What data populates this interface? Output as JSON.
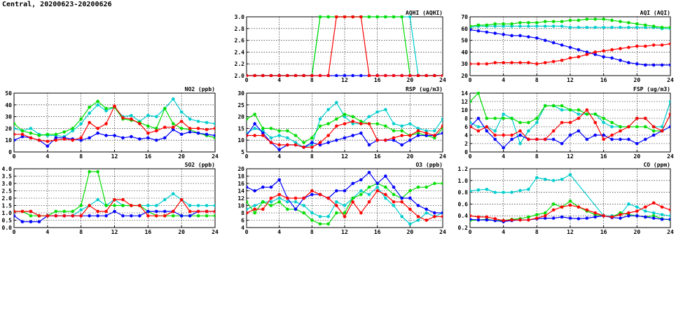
{
  "page": {
    "title": "Central, 20200623-20200626"
  },
  "colors": {
    "series": [
      "#00cdcd",
      "#00dd00",
      "#0000ff",
      "#ff0000"
    ]
  },
  "chart_data": [
    {
      "id": "aqhi",
      "type": "line",
      "title": "AQHI (AQHI)",
      "xlim": [
        0,
        24
      ],
      "ylim": [
        2.0,
        3.0
      ],
      "xticks": [
        "0",
        "4",
        "8",
        "12",
        "16",
        "20",
        "24"
      ],
      "yticks": [
        "2.0",
        "2.2",
        "2.4",
        "2.6",
        "2.8",
        "3.0"
      ],
      "grid": true,
      "series": [
        {
          "color": "cyan",
          "values": [
            2,
            2,
            2,
            2,
            2,
            2,
            2,
            2,
            2,
            3,
            3,
            3,
            3,
            3,
            3,
            3,
            3,
            3,
            3,
            3,
            3,
            2,
            2,
            2,
            2
          ]
        },
        {
          "color": "green",
          "values": [
            2,
            2,
            2,
            2,
            2,
            2,
            2,
            2,
            2,
            3,
            3,
            3,
            3,
            3,
            3,
            3,
            3,
            3,
            3,
            3,
            2,
            2,
            2,
            2,
            2
          ]
        },
        {
          "color": "blue",
          "values": [
            2,
            2,
            2,
            2,
            2,
            2,
            2,
            2,
            2,
            2,
            2,
            2,
            2,
            2,
            2,
            2,
            2,
            2,
            2,
            2,
            2,
            2,
            2,
            2,
            2
          ]
        },
        {
          "color": "red",
          "values": [
            2,
            2,
            2,
            2,
            2,
            2,
            2,
            2,
            2,
            2,
            2,
            3,
            3,
            3,
            3,
            2,
            2,
            2,
            2,
            2,
            2,
            2,
            2,
            2,
            2
          ]
        }
      ]
    },
    {
      "id": "aqi",
      "type": "line",
      "title": "AQI (AQI)",
      "xlim": [
        0,
        24
      ],
      "ylim": [
        20,
        70
      ],
      "xticks": [
        "0",
        "4",
        "8",
        "12",
        "16",
        "20",
        "24"
      ],
      "yticks": [
        "20",
        "30",
        "40",
        "50",
        "60",
        "70"
      ],
      "grid": true,
      "series": [
        {
          "color": "cyan",
          "values": [
            61,
            62,
            62,
            62,
            62,
            62,
            62,
            62,
            62,
            62,
            62,
            62,
            61,
            61,
            61,
            61,
            61,
            61,
            61,
            61,
            61,
            61,
            61,
            60,
            60
          ]
        },
        {
          "color": "green",
          "values": [
            62,
            63,
            63,
            64,
            64,
            64,
            65,
            65,
            65,
            66,
            66,
            66,
            67,
            67,
            68,
            68,
            68,
            67,
            66,
            65,
            64,
            63,
            62,
            61,
            61
          ]
        },
        {
          "color": "blue",
          "values": [
            59,
            58,
            57,
            56,
            55,
            54,
            54,
            53,
            52,
            50,
            48,
            46,
            44,
            42,
            40,
            38,
            36,
            35,
            33,
            31,
            30,
            29,
            29,
            29,
            29
          ]
        },
        {
          "color": "red",
          "values": [
            30,
            30,
            30,
            31,
            31,
            31,
            31,
            31,
            30,
            31,
            32,
            33,
            35,
            36,
            38,
            40,
            41,
            42,
            43,
            44,
            45,
            45,
            46,
            46,
            47
          ]
        }
      ]
    },
    {
      "id": "no2",
      "type": "line",
      "title": "NO2 (ppb)",
      "xlim": [
        0,
        24
      ],
      "ylim": [
        0,
        50
      ],
      "xticks": [
        "0",
        "4",
        "8",
        "12",
        "16",
        "20",
        "24"
      ],
      "yticks": [
        "0",
        "10",
        "20",
        "30",
        "40",
        "50"
      ],
      "grid": true,
      "series": [
        {
          "color": "cyan",
          "values": [
            20,
            18,
            20,
            15,
            14,
            14,
            13,
            18,
            24,
            33,
            40,
            35,
            38,
            30,
            31,
            26,
            31,
            30,
            37,
            45,
            34,
            28,
            26,
            25,
            24
          ]
        },
        {
          "color": "green",
          "values": [
            24,
            18,
            16,
            14,
            15,
            15,
            17,
            20,
            28,
            38,
            43,
            37,
            38,
            28,
            27,
            25,
            22,
            20,
            37,
            24,
            20,
            19,
            16,
            14,
            12
          ]
        },
        {
          "color": "blue",
          "values": [
            10,
            13,
            12,
            10,
            5,
            12,
            12,
            11,
            10,
            12,
            16,
            14,
            14,
            12,
            13,
            11,
            12,
            10,
            12,
            19,
            15,
            17,
            16,
            15,
            14
          ]
        },
        {
          "color": "red",
          "values": [
            15,
            15,
            12,
            10,
            9,
            10,
            11,
            10,
            12,
            25,
            20,
            24,
            39,
            29,
            28,
            24,
            16,
            18,
            21,
            21,
            26,
            20,
            20,
            19,
            20
          ]
        }
      ]
    },
    {
      "id": "rsp",
      "type": "line",
      "title": "RSP (ug/m3)",
      "xlim": [
        0,
        24
      ],
      "ylim": [
        5,
        30
      ],
      "xticks": [
        "0",
        "4",
        "8",
        "12",
        "16",
        "20",
        "24"
      ],
      "yticks": [
        "5",
        "10",
        "15",
        "20",
        "25",
        "30"
      ],
      "grid": true,
      "series": [
        {
          "color": "cyan",
          "values": [
            13,
            15,
            14,
            11,
            12,
            11,
            9,
            7,
            8,
            19,
            23,
            26,
            20,
            17,
            17,
            20,
            22,
            23,
            17,
            16,
            17,
            15,
            14,
            14,
            19
          ]
        },
        {
          "color": "green",
          "values": [
            19,
            21,
            15,
            15,
            14,
            14,
            12,
            9,
            11,
            16,
            17,
            19,
            21,
            20,
            18,
            17,
            17,
            16,
            14,
            14,
            12,
            13,
            12,
            11,
            15
          ]
        },
        {
          "color": "blue",
          "values": [
            12,
            17,
            13,
            9,
            6,
            8,
            8,
            7,
            9,
            8,
            9,
            10,
            11,
            12,
            13,
            8,
            10,
            10,
            10,
            8,
            10,
            12,
            12,
            12,
            13
          ]
        },
        {
          "color": "red",
          "values": [
            12,
            12,
            12,
            9,
            8,
            8,
            8,
            7,
            7,
            9,
            12,
            16,
            17,
            18,
            17,
            17,
            10,
            10,
            11,
            12,
            12,
            14,
            13,
            12,
            16
          ]
        }
      ]
    },
    {
      "id": "fsp",
      "type": "line",
      "title": "FSP (ug/m3)",
      "xlim": [
        0,
        24
      ],
      "ylim": [
        0,
        14
      ],
      "xticks": [
        "0",
        "4",
        "8",
        "12",
        "16",
        "20",
        "24"
      ],
      "yticks": [
        "0",
        "2",
        "4",
        "6",
        "8",
        "10",
        "12",
        "14"
      ],
      "grid": true,
      "series": [
        {
          "color": "cyan",
          "values": [
            7,
            6,
            6,
            5,
            9,
            8,
            2,
            5,
            7,
            11,
            11,
            10,
            10,
            9,
            9,
            9,
            7,
            6,
            6,
            6,
            8,
            8,
            6,
            6,
            12
          ]
        },
        {
          "color": "green",
          "values": [
            12,
            14,
            8,
            8,
            8,
            8,
            7,
            7,
            8,
            11,
            11,
            11,
            10,
            10,
            9,
            9,
            8,
            7,
            6,
            6,
            6,
            6,
            5,
            5,
            6
          ]
        },
        {
          "color": "blue",
          "values": [
            6,
            8,
            5,
            3,
            1,
            3,
            4,
            3,
            3,
            3,
            3,
            2,
            4,
            5,
            3,
            4,
            4,
            3,
            3,
            3,
            2,
            3,
            4,
            5,
            6
          ]
        },
        {
          "color": "red",
          "values": [
            6,
            5,
            6,
            4,
            4,
            4,
            5,
            3,
            3,
            3,
            5,
            7,
            7,
            8,
            10,
            7,
            3,
            4,
            5,
            6,
            8,
            8,
            6,
            5,
            9
          ]
        }
      ]
    },
    {
      "id": "so2",
      "type": "line",
      "title": "SO2 (ppb)",
      "xlim": [
        0,
        24
      ],
      "ylim": [
        0.0,
        4.0
      ],
      "xticks": [
        "0",
        "4",
        "8",
        "12",
        "16",
        "20",
        "24"
      ],
      "yticks": [
        "0.0",
        "0.5",
        "1.0",
        "1.5",
        "2.0",
        "2.5",
        "3.0",
        "3.5",
        "4.0"
      ],
      "grid": true,
      "series": [
        {
          "color": "cyan",
          "values": [
            1.1,
            1.1,
            1.1,
            0.8,
            0.8,
            0.8,
            0.8,
            0.8,
            1.2,
            1.5,
            1.9,
            1.5,
            1.9,
            1.5,
            1.5,
            1.5,
            1.5,
            1.5,
            1.9,
            2.3,
            1.9,
            1.5,
            1.5,
            1.5,
            1.5
          ]
        },
        {
          "color": "green",
          "values": [
            1.1,
            1.1,
            0.8,
            0.8,
            0.8,
            1.1,
            1.1,
            1.1,
            1.5,
            3.8,
            3.8,
            1.5,
            1.5,
            1.5,
            1.5,
            1.5,
            1.1,
            0.8,
            0.8,
            0.8,
            0.8,
            0.8,
            0.8,
            0.8,
            0.8
          ]
        },
        {
          "color": "blue",
          "values": [
            0.8,
            0.4,
            0.4,
            0.4,
            0.8,
            0.8,
            0.8,
            0.8,
            0.8,
            0.8,
            0.8,
            0.8,
            1.1,
            0.8,
            0.8,
            0.8,
            1.1,
            1.1,
            1.1,
            1.1,
            0.8,
            0.8,
            1.1,
            1.1,
            1.1
          ]
        },
        {
          "color": "red",
          "values": [
            1.1,
            1.1,
            1.1,
            0.8,
            0.8,
            0.8,
            0.8,
            0.8,
            0.8,
            1.5,
            1.1,
            1.1,
            1.9,
            1.9,
            1.5,
            1.5,
            0.8,
            0.8,
            0.8,
            1.1,
            1.9,
            1.1,
            1.1,
            1.1,
            1.1
          ]
        }
      ]
    },
    {
      "id": "o3",
      "type": "line",
      "title": "O3 (ppb)",
      "xlim": [
        0,
        24
      ],
      "ylim": [
        4,
        20
      ],
      "xticks": [
        "0",
        "4",
        "8",
        "12",
        "16",
        "20",
        "24"
      ],
      "yticks": [
        "4",
        "6",
        "8",
        "10",
        "12",
        "14",
        "16",
        "18",
        "20"
      ],
      "grid": true,
      "series": [
        {
          "color": "cyan",
          "values": [
            9,
            10,
            11,
            11,
            12,
            11,
            11,
            10,
            8,
            7,
            7,
            11,
            10,
            12,
            14,
            13,
            15,
            12,
            10,
            7,
            5,
            6,
            8,
            7,
            8
          ]
        },
        {
          "color": "green",
          "values": [
            11,
            8,
            11,
            10,
            11,
            9,
            9,
            8,
            6,
            5,
            5,
            8,
            8,
            12,
            13,
            15,
            16,
            15,
            13,
            12,
            14,
            15,
            15,
            16,
            16
          ]
        },
        {
          "color": "blue",
          "values": [
            15,
            14,
            15,
            15,
            17,
            12,
            9,
            12,
            13,
            13,
            12,
            14,
            14,
            16,
            17,
            19,
            16,
            18,
            15,
            12,
            12,
            10,
            9,
            8,
            8
          ]
        },
        {
          "color": "red",
          "values": [
            8,
            9,
            9,
            12,
            13,
            12,
            12,
            12,
            14,
            13,
            12,
            10,
            7,
            11,
            8,
            11,
            14,
            13,
            11,
            11,
            9,
            7,
            6,
            7,
            7
          ]
        }
      ]
    },
    {
      "id": "co",
      "type": "line",
      "title": "CO (ppm)",
      "xlim": [
        0,
        24
      ],
      "ylim": [
        0.2,
        1.2
      ],
      "xticks": [
        "0",
        "4",
        "8",
        "12",
        "16",
        "20",
        "24"
      ],
      "yticks": [
        "0.2",
        "0.4",
        "0.6",
        "0.8",
        "1.0",
        "1.2"
      ],
      "grid": true,
      "series": [
        {
          "color": "cyan",
          "values": [
            0.82,
            0.84,
            0.85,
            0.8,
            0.8,
            0.8,
            0.83,
            0.85,
            1.05,
            1.02,
            1.0,
            1.02,
            1.1,
            null,
            null,
            null,
            0.4,
            0.4,
            0.42,
            0.6,
            0.55,
            0.48,
            0.45,
            0.42,
            0.4
          ]
        },
        {
          "color": "green",
          "values": [
            0.32,
            0.33,
            0.34,
            0.32,
            0.32,
            0.34,
            0.35,
            0.38,
            0.42,
            0.45,
            0.6,
            0.55,
            0.65,
            0.55,
            0.48,
            0.42,
            0.4,
            0.38,
            0.45,
            0.42,
            0.4,
            0.38,
            0.4,
            0.35,
            0.33
          ]
        },
        {
          "color": "blue",
          "values": [
            0.34,
            0.33,
            0.33,
            0.32,
            0.3,
            0.32,
            0.33,
            0.33,
            0.35,
            0.36,
            0.36,
            0.38,
            0.36,
            0.35,
            0.36,
            0.38,
            0.4,
            0.37,
            0.36,
            0.4,
            0.4,
            0.38,
            0.36,
            0.34,
            0.34
          ]
        },
        {
          "color": "red",
          "values": [
            0.4,
            0.38,
            0.38,
            0.35,
            0.32,
            0.33,
            0.33,
            0.33,
            0.36,
            0.4,
            0.5,
            0.55,
            0.58,
            0.55,
            0.5,
            0.45,
            0.4,
            0.38,
            0.42,
            0.45,
            0.48,
            0.55,
            0.62,
            0.55,
            0.5
          ]
        }
      ]
    }
  ]
}
